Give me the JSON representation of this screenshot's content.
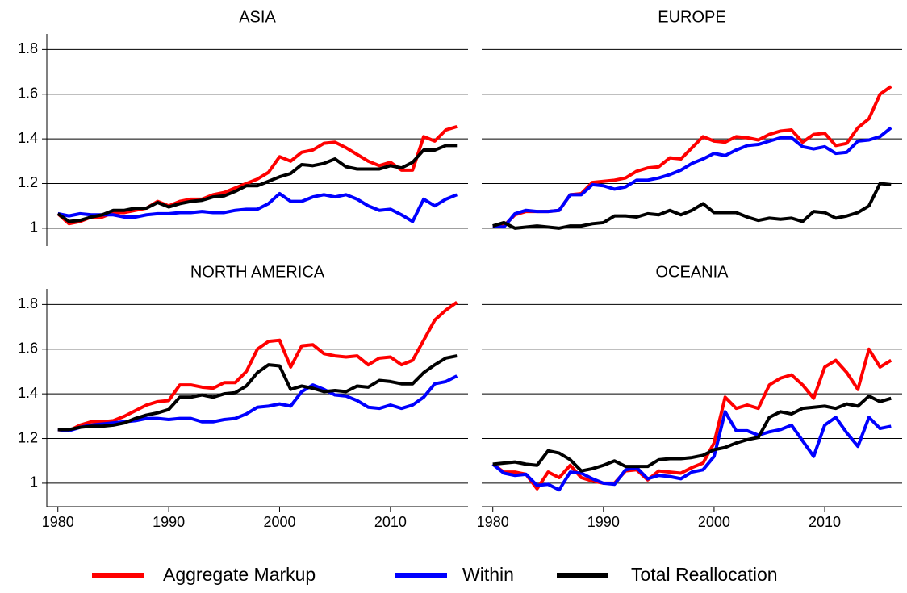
{
  "chart_data": [
    {
      "type": "line",
      "title": "ASIA",
      "x": [
        1980,
        1981,
        1982,
        1983,
        1984,
        1985,
        1986,
        1987,
        1988,
        1989,
        1990,
        1991,
        1992,
        1993,
        1994,
        1995,
        1996,
        1997,
        1998,
        1999,
        2000,
        2001,
        2002,
        2003,
        2004,
        2005,
        2006,
        2007,
        2008,
        2009,
        2010,
        2011,
        2012,
        2013,
        2014,
        2015,
        2016
      ],
      "xlim": [
        1979,
        2017
      ],
      "ylim": [
        0.92,
        1.87
      ],
      "yticks": [
        1,
        1.2,
        1.4,
        1.6,
        1.8
      ],
      "grid": true,
      "series": [
        {
          "name": "Aggregate Markup",
          "color": "#ff0000",
          "values": [
            1.065,
            1.02,
            1.03,
            1.05,
            1.05,
            1.07,
            1.07,
            1.08,
            1.09,
            1.12,
            1.1,
            1.12,
            1.13,
            1.13,
            1.15,
            1.16,
            1.18,
            1.2,
            1.22,
            1.25,
            1.32,
            1.3,
            1.34,
            1.35,
            1.38,
            1.385,
            1.36,
            1.33,
            1.3,
            1.28,
            1.295,
            1.26,
            1.26,
            1.41,
            1.39,
            1.44,
            1.455
          ]
        },
        {
          "name": "Within",
          "color": "#0000ff",
          "values": [
            1.065,
            1.055,
            1.065,
            1.06,
            1.06,
            1.06,
            1.05,
            1.05,
            1.06,
            1.065,
            1.065,
            1.07,
            1.07,
            1.075,
            1.07,
            1.07,
            1.08,
            1.085,
            1.085,
            1.11,
            1.155,
            1.12,
            1.12,
            1.14,
            1.15,
            1.14,
            1.15,
            1.13,
            1.1,
            1.08,
            1.085,
            1.06,
            1.03,
            1.13,
            1.1,
            1.13,
            1.15
          ]
        },
        {
          "name": "Total Reallocation",
          "color": "#000000",
          "values": [
            1.065,
            1.03,
            1.035,
            1.05,
            1.06,
            1.08,
            1.08,
            1.09,
            1.09,
            1.115,
            1.095,
            1.11,
            1.12,
            1.125,
            1.14,
            1.145,
            1.165,
            1.19,
            1.19,
            1.21,
            1.23,
            1.245,
            1.285,
            1.28,
            1.29,
            1.31,
            1.275,
            1.265,
            1.265,
            1.265,
            1.28,
            1.27,
            1.295,
            1.35,
            1.35,
            1.37,
            1.37
          ]
        }
      ]
    },
    {
      "type": "line",
      "title": "EUROPE",
      "x": [
        1980,
        1981,
        1982,
        1983,
        1984,
        1985,
        1986,
        1987,
        1988,
        1989,
        1990,
        1991,
        1992,
        1993,
        1994,
        1995,
        1996,
        1997,
        1998,
        1999,
        2000,
        2001,
        2002,
        2003,
        2004,
        2005,
        2006,
        2007,
        2008,
        2009,
        2010,
        2011,
        2012,
        2013,
        2014,
        2015,
        2016
      ],
      "xlim": [
        1979,
        2017
      ],
      "ylim": [
        0.92,
        1.87
      ],
      "yticks": [
        1,
        1.2,
        1.4,
        1.6,
        1.8
      ],
      "grid": true,
      "series": [
        {
          "name": "Aggregate Markup",
          "color": "#ff0000",
          "values": [
            1.01,
            1.01,
            1.06,
            1.075,
            1.075,
            1.075,
            1.08,
            1.15,
            1.155,
            1.205,
            1.21,
            1.215,
            1.225,
            1.255,
            1.27,
            1.275,
            1.315,
            1.31,
            1.36,
            1.41,
            1.39,
            1.385,
            1.41,
            1.405,
            1.395,
            1.42,
            1.435,
            1.44,
            1.385,
            1.42,
            1.425,
            1.37,
            1.38,
            1.45,
            1.49,
            1.6,
            1.635
          ]
        },
        {
          "name": "Within",
          "color": "#0000ff",
          "values": [
            1.01,
            1.005,
            1.065,
            1.08,
            1.075,
            1.075,
            1.08,
            1.15,
            1.15,
            1.195,
            1.19,
            1.175,
            1.185,
            1.215,
            1.215,
            1.225,
            1.24,
            1.26,
            1.29,
            1.31,
            1.335,
            1.325,
            1.35,
            1.37,
            1.375,
            1.39,
            1.405,
            1.405,
            1.365,
            1.355,
            1.365,
            1.335,
            1.34,
            1.39,
            1.395,
            1.41,
            1.45
          ]
        },
        {
          "name": "Total Reallocation",
          "color": "#000000",
          "values": [
            1.01,
            1.025,
            1.0,
            1.005,
            1.01,
            1.005,
            1.0,
            1.01,
            1.01,
            1.02,
            1.025,
            1.055,
            1.055,
            1.05,
            1.065,
            1.06,
            1.08,
            1.06,
            1.08,
            1.11,
            1.07,
            1.07,
            1.07,
            1.05,
            1.035,
            1.045,
            1.04,
            1.045,
            1.03,
            1.075,
            1.07,
            1.045,
            1.055,
            1.07,
            1.1,
            1.2,
            1.195
          ]
        }
      ]
    },
    {
      "type": "line",
      "title": "NORTH AMERICA",
      "x": [
        1980,
        1981,
        1982,
        1983,
        1984,
        1985,
        1986,
        1987,
        1988,
        1989,
        1990,
        1991,
        1992,
        1993,
        1994,
        1995,
        1996,
        1997,
        1998,
        1999,
        2000,
        2001,
        2002,
        2003,
        2004,
        2005,
        2006,
        2007,
        2008,
        2009,
        2010,
        2011,
        2012,
        2013,
        2014,
        2015,
        2016
      ],
      "xlim": [
        1979,
        2017
      ],
      "xticks": [
        1980,
        1990,
        2000,
        2010
      ],
      "ylim": [
        0.895,
        1.87
      ],
      "yticks": [
        1,
        1.2,
        1.4,
        1.6,
        1.8
      ],
      "grid": true,
      "series": [
        {
          "name": "Aggregate Markup",
          "color": "#ff0000",
          "values": [
            1.24,
            1.235,
            1.26,
            1.275,
            1.275,
            1.28,
            1.3,
            1.325,
            1.35,
            1.365,
            1.37,
            1.44,
            1.44,
            1.43,
            1.425,
            1.45,
            1.45,
            1.5,
            1.6,
            1.635,
            1.64,
            1.52,
            1.615,
            1.62,
            1.58,
            1.57,
            1.565,
            1.57,
            1.53,
            1.56,
            1.565,
            1.53,
            1.55,
            1.64,
            1.73,
            1.775,
            1.81
          ]
        },
        {
          "name": "Within",
          "color": "#0000ff",
          "values": [
            1.24,
            1.235,
            1.25,
            1.26,
            1.265,
            1.27,
            1.275,
            1.28,
            1.29,
            1.29,
            1.285,
            1.29,
            1.29,
            1.275,
            1.275,
            1.285,
            1.29,
            1.31,
            1.34,
            1.345,
            1.355,
            1.345,
            1.41,
            1.44,
            1.42,
            1.395,
            1.39,
            1.37,
            1.34,
            1.335,
            1.35,
            1.335,
            1.35,
            1.385,
            1.445,
            1.455,
            1.48
          ]
        },
        {
          "name": "Total Reallocation",
          "color": "#000000",
          "values": [
            1.24,
            1.24,
            1.25,
            1.255,
            1.255,
            1.26,
            1.27,
            1.29,
            1.305,
            1.315,
            1.33,
            1.385,
            1.385,
            1.395,
            1.385,
            1.4,
            1.405,
            1.435,
            1.495,
            1.53,
            1.525,
            1.42,
            1.435,
            1.425,
            1.41,
            1.415,
            1.41,
            1.435,
            1.43,
            1.46,
            1.455,
            1.445,
            1.445,
            1.495,
            1.53,
            1.56,
            1.57
          ]
        }
      ]
    },
    {
      "type": "line",
      "title": "OCEANIA",
      "x": [
        1980,
        1981,
        1982,
        1983,
        1984,
        1985,
        1986,
        1987,
        1988,
        1989,
        1990,
        1991,
        1992,
        1993,
        1994,
        1995,
        1996,
        1997,
        1998,
        1999,
        2000,
        2001,
        2002,
        2003,
        2004,
        2005,
        2006,
        2007,
        2008,
        2009,
        2010,
        2011,
        2012,
        2013,
        2014,
        2015,
        2016
      ],
      "xlim": [
        1979,
        2017
      ],
      "xticks": [
        1980,
        1990,
        2000,
        2010
      ],
      "ylim": [
        0.895,
        1.87
      ],
      "yticks": [
        1,
        1.2,
        1.4,
        1.6,
        1.8
      ],
      "grid": true,
      "series": [
        {
          "name": "Aggregate Markup",
          "color": "#ff0000",
          "values": [
            1.085,
            1.05,
            1.05,
            1.04,
            0.975,
            1.05,
            1.025,
            1.08,
            1.025,
            1.01,
            1.0,
            1.0,
            1.055,
            1.06,
            1.015,
            1.055,
            1.05,
            1.045,
            1.07,
            1.09,
            1.18,
            1.385,
            1.335,
            1.35,
            1.335,
            1.44,
            1.47,
            1.485,
            1.44,
            1.38,
            1.52,
            1.55,
            1.495,
            1.42,
            1.6,
            1.52,
            1.55
          ]
        },
        {
          "name": "Within",
          "color": "#0000ff",
          "values": [
            1.085,
            1.045,
            1.035,
            1.04,
            0.99,
            0.995,
            0.97,
            1.05,
            1.045,
            1.02,
            1.0,
            0.995,
            1.06,
            1.07,
            1.02,
            1.035,
            1.03,
            1.02,
            1.05,
            1.06,
            1.12,
            1.32,
            1.235,
            1.235,
            1.215,
            1.23,
            1.24,
            1.26,
            1.19,
            1.12,
            1.26,
            1.295,
            1.225,
            1.165,
            1.295,
            1.245,
            1.255
          ]
        },
        {
          "name": "Total Reallocation",
          "color": "#000000",
          "values": [
            1.085,
            1.09,
            1.095,
            1.085,
            1.08,
            1.145,
            1.135,
            1.105,
            1.055,
            1.065,
            1.08,
            1.1,
            1.075,
            1.075,
            1.075,
            1.105,
            1.11,
            1.11,
            1.115,
            1.125,
            1.15,
            1.16,
            1.18,
            1.195,
            1.205,
            1.295,
            1.32,
            1.31,
            1.335,
            1.34,
            1.345,
            1.335,
            1.355,
            1.345,
            1.39,
            1.365,
            1.38
          ]
        }
      ]
    }
  ]
}
